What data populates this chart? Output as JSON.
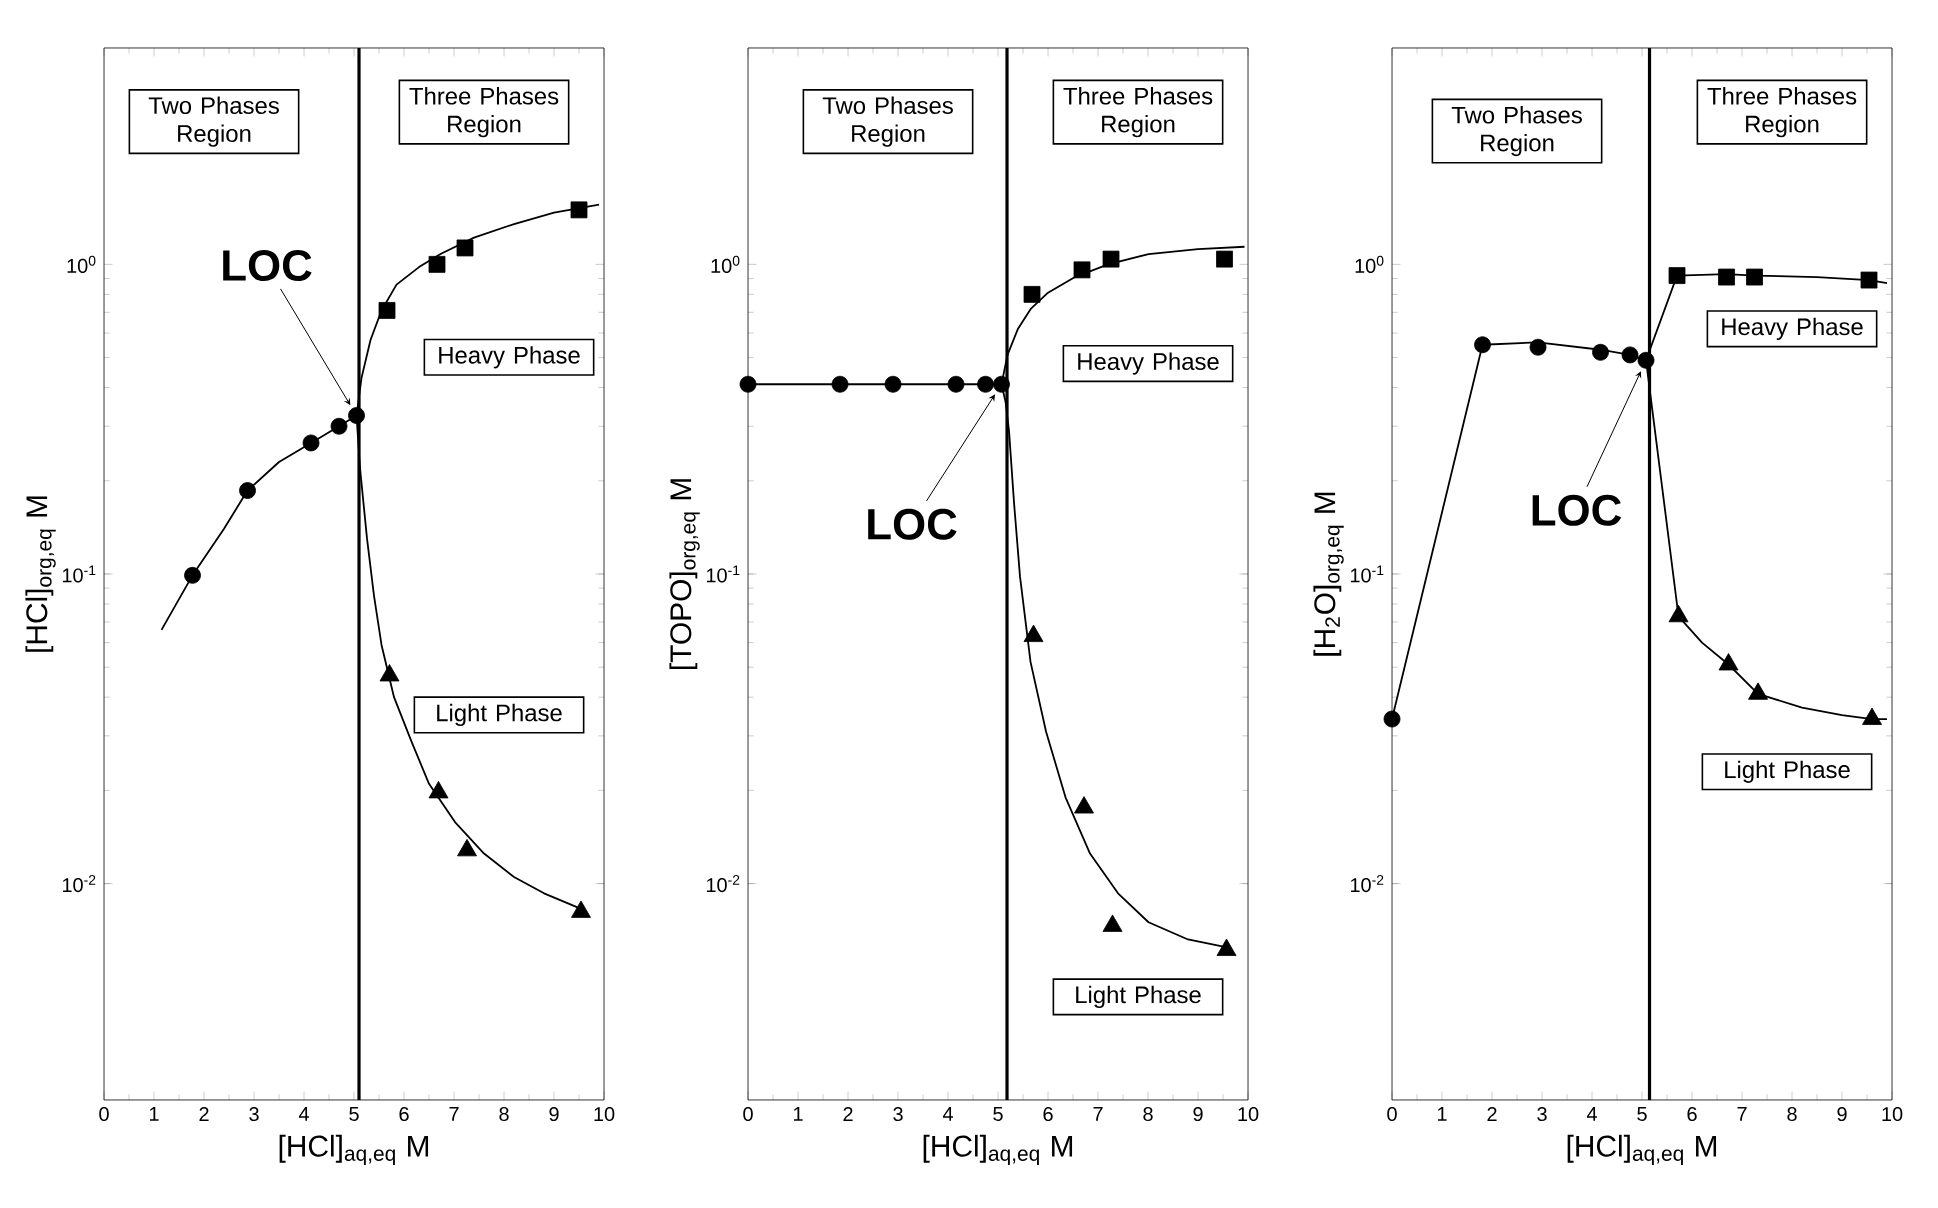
{
  "chart_data": [
    {
      "type": "scatter",
      "xlabel": "[HCl]$_{aq,eq}$ M",
      "ylabel": "[HCl]$_{org,eq}$ M",
      "log": "y",
      "xlim": [
        0,
        10
      ],
      "ylim": [
        0.002,
        5
      ],
      "xticks": [
        0,
        1,
        2,
        3,
        4,
        5,
        6,
        7,
        8,
        9,
        10
      ],
      "yticks": [
        {
          "value": 0.01,
          "label": "10$^{-2}$"
        },
        {
          "value": 0.1,
          "label": "10$^{-1}$"
        },
        {
          "value": 1,
          "label": "10$^{0}$"
        }
      ],
      "series": [
        {
          "type": "scatter",
          "marker": "circle",
          "color": "#000000",
          "x": [
            1.77,
            2.87,
            4.14,
            4.7,
            5.05
          ],
          "values": [
            0.099,
            0.186,
            0.265,
            0.3,
            0.325
          ]
        },
        {
          "type": "scatter",
          "marker": "square",
          "color": "#000000",
          "x": [
            5.66,
            6.66,
            7.22,
            9.5
          ],
          "values": [
            0.71,
            1.0,
            1.13,
            1.5
          ]
        },
        {
          "type": "scatter",
          "marker": "triangle",
          "color": "#000000",
          "x": [
            5.71,
            6.69,
            7.26,
            9.54
          ],
          "values": [
            0.047,
            0.0197,
            0.0128,
            0.0081
          ]
        },
        {
          "type": "line",
          "color": "#000000",
          "x": [
            1.15,
            1.77,
            2.4,
            2.87,
            3.5,
            4.14,
            4.7,
            5.05
          ],
          "values": [
            0.066,
            0.099,
            0.14,
            0.186,
            0.23,
            0.265,
            0.3,
            0.325
          ]
        },
        {
          "type": "line",
          "color": "#000000",
          "x": [
            5.05,
            5.15,
            5.33,
            5.55,
            5.85,
            6.3,
            6.73,
            7.4,
            8.2,
            9.0,
            9.9
          ],
          "values": [
            0.325,
            0.43,
            0.57,
            0.71,
            0.86,
            0.98,
            1.08,
            1.22,
            1.35,
            1.47,
            1.56
          ]
        },
        {
          "type": "line",
          "color": "#000000",
          "x": [
            5.05,
            5.12,
            5.26,
            5.4,
            5.55,
            5.8,
            6.14,
            6.5,
            7.02,
            7.6,
            8.2,
            8.8,
            9.53
          ],
          "values": [
            0.325,
            0.22,
            0.13,
            0.085,
            0.059,
            0.04,
            0.029,
            0.021,
            0.0158,
            0.0125,
            0.0105,
            0.0093,
            0.0083
          ]
        }
      ],
      "ref_lines": [
        {
          "axis": "x",
          "value": 5.1
        }
      ],
      "annotations": [
        {
          "text": "LOC",
          "x": 5.05,
          "y": 0.325
        },
        "Two Phases Region",
        "Three Phases Region",
        "Heavy Phase",
        "Light Phase"
      ]
    },
    {
      "type": "scatter",
      "xlabel": "[HCl]$_{aq,eq}$ M",
      "ylabel": "[TOPO]$_{org,eq}$ M",
      "log": "y",
      "xlim": [
        0,
        10
      ],
      "ylim": [
        0.002,
        5
      ],
      "xticks": [
        0,
        1,
        2,
        3,
        4,
        5,
        6,
        7,
        8,
        9,
        10
      ],
      "yticks": [
        {
          "value": 0.01,
          "label": "10$^{-2}$"
        },
        {
          "value": 0.1,
          "label": "10$^{-1}$"
        },
        {
          "value": 1,
          "label": "10$^{0}$"
        }
      ],
      "series": [
        {
          "type": "scatter",
          "marker": "circle",
          "color": "#000000",
          "x": [
            0,
            1.84,
            2.9,
            4.16,
            4.75,
            5.07
          ],
          "values": [
            0.41,
            0.41,
            0.41,
            0.41,
            0.41,
            0.41
          ]
        },
        {
          "type": "scatter",
          "marker": "square",
          "color": "#000000",
          "x": [
            5.68,
            6.68,
            7.26,
            9.53
          ],
          "values": [
            0.8,
            0.96,
            1.04,
            1.04
          ]
        },
        {
          "type": "scatter",
          "marker": "triangle",
          "color": "#000000",
          "x": [
            5.71,
            6.72,
            7.29,
            9.57
          ],
          "values": [
            0.063,
            0.0176,
            0.0073,
            0.0061
          ]
        },
        {
          "type": "line",
          "color": "#000000",
          "x": [
            0,
            5.07
          ],
          "values": [
            0.41,
            0.41
          ]
        },
        {
          "type": "line",
          "color": "#000000",
          "x": [
            5.07,
            5.19,
            5.4,
            5.66,
            6.0,
            6.54,
            7.2,
            8.01,
            9.0,
            9.93
          ],
          "values": [
            0.41,
            0.51,
            0.62,
            0.72,
            0.81,
            0.91,
            1.0,
            1.08,
            1.12,
            1.14
          ]
        },
        {
          "type": "line",
          "color": "#000000",
          "x": [
            5.07,
            5.15,
            5.22,
            5.32,
            5.44,
            5.65,
            5.96,
            6.35,
            6.84,
            7.4,
            8.01,
            8.8,
            9.63
          ],
          "values": [
            0.41,
            0.36,
            0.29,
            0.17,
            0.098,
            0.052,
            0.031,
            0.019,
            0.0125,
            0.0093,
            0.0075,
            0.0066,
            0.0062
          ]
        }
      ],
      "ref_lines": [
        {
          "axis": "x",
          "value": 5.18
        }
      ],
      "annotations": [
        {
          "text": "LOC",
          "x": 5.07,
          "y": 0.41
        },
        "Two Phases Region",
        "Three Phases Region",
        "Heavy Phase",
        "Light Phase"
      ]
    },
    {
      "type": "scatter",
      "xlabel": "[HCl]$_{aq,eq}$ M",
      "ylabel": "[H$_{2}$O]$_{org,eq}$ M",
      "log": "y",
      "xlim": [
        0,
        10
      ],
      "ylim": [
        0.002,
        5
      ],
      "xticks": [
        0,
        1,
        2,
        3,
        4,
        5,
        6,
        7,
        8,
        9,
        10
      ],
      "yticks": [
        {
          "value": 0.01,
          "label": "10$^{-2}$"
        },
        {
          "value": 0.1,
          "label": "10$^{-1}$"
        },
        {
          "value": 1,
          "label": "10$^{0}$"
        }
      ],
      "series": [
        {
          "type": "scatter",
          "marker": "circle",
          "color": "#000000",
          "x": [
            0,
            1.81,
            2.92,
            4.17,
            4.76,
            5.08
          ],
          "values": [
            0.034,
            0.55,
            0.54,
            0.52,
            0.51,
            0.49
          ]
        },
        {
          "type": "scatter",
          "marker": "square",
          "color": "#000000",
          "x": [
            5.7,
            6.69,
            7.25,
            9.54
          ],
          "values": [
            0.92,
            0.91,
            0.91,
            0.89
          ]
        },
        {
          "type": "scatter",
          "marker": "triangle",
          "color": "#000000",
          "x": [
            5.73,
            6.73,
            7.32,
            9.6
          ],
          "values": [
            0.073,
            0.051,
            0.041,
            0.034
          ]
        },
        {
          "type": "line",
          "color": "#000000",
          "x": [
            0,
            1.81,
            2.92,
            4.17,
            4.76,
            5.08
          ],
          "values": [
            0.034,
            0.55,
            0.56,
            0.53,
            0.51,
            0.49
          ]
        },
        {
          "type": "line",
          "color": "#000000",
          "x": [
            5.08,
            5.7,
            6.69,
            7.25,
            8.5,
            9.54,
            9.9
          ],
          "values": [
            0.49,
            0.92,
            0.93,
            0.92,
            0.91,
            0.89,
            0.87
          ]
        },
        {
          "type": "line",
          "color": "#000000",
          "x": [
            5.08,
            5.73,
            6.2,
            6.73,
            7.32,
            8.2,
            9.0,
            9.6,
            9.9
          ],
          "values": [
            0.49,
            0.073,
            0.06,
            0.051,
            0.041,
            0.037,
            0.035,
            0.034,
            0.034
          ]
        }
      ],
      "ref_lines": [
        {
          "axis": "x",
          "value": 5.15
        }
      ],
      "annotations": [
        {
          "text": "LOC",
          "x": 5.08,
          "y": 0.49
        },
        "Two Phases Region",
        "Three Phases Region",
        "Heavy Phase",
        "Light Phase"
      ]
    }
  ]
}
